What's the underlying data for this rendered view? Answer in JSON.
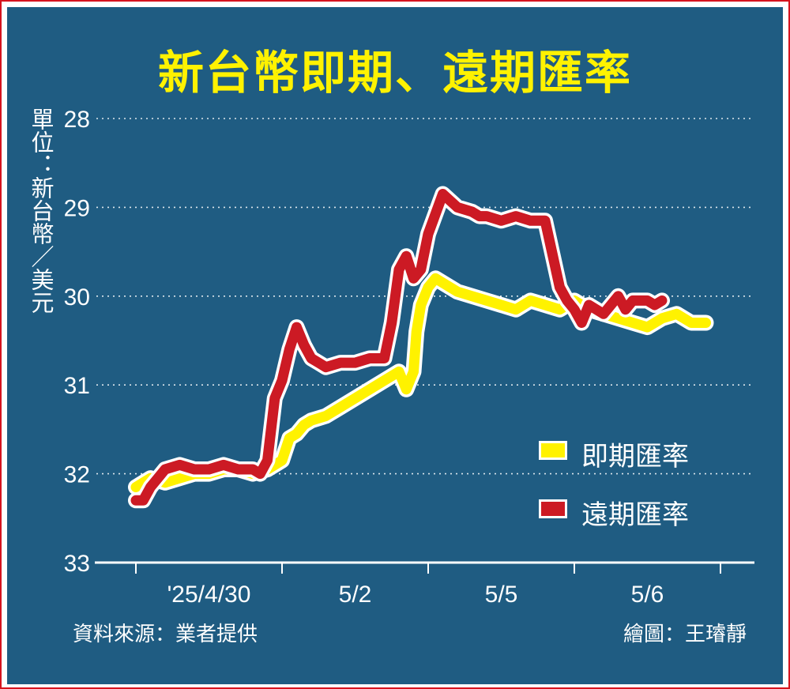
{
  "title": "新台幣即期、遠期匯率",
  "unit_label": "單位：新台幣／美元",
  "source": "資料來源：業者提供",
  "credit": "繪圖：王璿靜",
  "colors": {
    "background": "#1f5c82",
    "spot": "#fff200",
    "forward": "#cc1a24",
    "frame": "#d6141e"
  },
  "legend": [
    {
      "label": "即期匯率",
      "color": "#fff200"
    },
    {
      "label": "遠期匯率",
      "color": "#cc1a24"
    }
  ],
  "chart_data": {
    "type": "line",
    "title": "新台幣即期、遠期匯率",
    "ylabel": "單位：新台幣／美元",
    "xlabel": "",
    "y_inverted": true,
    "ylim": [
      28,
      33
    ],
    "yticks": [
      "28",
      "29",
      "30",
      "31",
      "32",
      "33"
    ],
    "xtick_labels": [
      "'25/4/30",
      "5/2",
      "5/5",
      "5/6"
    ],
    "xlim": [
      0,
      4
    ],
    "grid": "horizontal dotted",
    "legend_position": "right-middle",
    "series": [
      {
        "name": "即期匯率",
        "color": "#fff200",
        "x": [
          0.0,
          0.05,
          0.1,
          0.2,
          0.3,
          0.4,
          0.5,
          0.6,
          0.7,
          0.8,
          0.9,
          0.95,
          1.0,
          1.05,
          1.1,
          1.15,
          1.2,
          1.3,
          1.4,
          1.5,
          1.6,
          1.7,
          1.8,
          1.85,
          1.9,
          1.92,
          1.95,
          2.0,
          2.05,
          2.1,
          2.2,
          2.3,
          2.4,
          2.5,
          2.6,
          2.7,
          2.8,
          2.9,
          3.0,
          3.1,
          3.2,
          3.3,
          3.4,
          3.5,
          3.6,
          3.7,
          3.8,
          3.9
        ],
        "y": [
          32.15,
          32.1,
          32.05,
          32.1,
          32.05,
          32.0,
          32.0,
          31.95,
          31.95,
          32.0,
          31.95,
          31.9,
          31.85,
          31.6,
          31.55,
          31.45,
          31.4,
          31.35,
          31.25,
          31.15,
          31.05,
          30.95,
          30.85,
          31.05,
          30.85,
          30.4,
          30.1,
          29.9,
          29.8,
          29.85,
          29.95,
          30.0,
          30.05,
          30.1,
          30.15,
          30.05,
          30.1,
          30.15,
          30.05,
          30.15,
          30.2,
          30.25,
          30.3,
          30.35,
          30.25,
          30.2,
          30.3,
          30.3
        ]
      },
      {
        "name": "遠期匯率",
        "color": "#cc1a24",
        "x": [
          0.0,
          0.05,
          0.1,
          0.15,
          0.2,
          0.3,
          0.4,
          0.5,
          0.6,
          0.7,
          0.8,
          0.85,
          0.9,
          0.95,
          1.0,
          1.05,
          1.1,
          1.15,
          1.2,
          1.25,
          1.3,
          1.4,
          1.5,
          1.6,
          1.7,
          1.75,
          1.8,
          1.85,
          1.9,
          1.95,
          2.0,
          2.1,
          2.2,
          2.3,
          2.35,
          2.4,
          2.5,
          2.6,
          2.7,
          2.8,
          2.9,
          2.95,
          3.0,
          3.05,
          3.1,
          3.2,
          3.3,
          3.35,
          3.4,
          3.5,
          3.55,
          3.6
        ],
        "y": [
          32.3,
          32.3,
          32.15,
          32.05,
          31.95,
          31.9,
          31.95,
          31.95,
          31.9,
          31.95,
          31.95,
          32.0,
          31.85,
          31.15,
          30.95,
          30.6,
          30.35,
          30.55,
          30.7,
          30.75,
          30.8,
          30.75,
          30.75,
          30.7,
          30.7,
          30.3,
          29.7,
          29.55,
          29.8,
          29.7,
          29.3,
          28.85,
          29.0,
          29.05,
          29.1,
          29.1,
          29.15,
          29.1,
          29.15,
          29.15,
          29.9,
          30.05,
          30.15,
          30.3,
          30.1,
          30.2,
          30.0,
          30.15,
          30.05,
          30.05,
          30.1,
          30.05
        ]
      }
    ]
  }
}
